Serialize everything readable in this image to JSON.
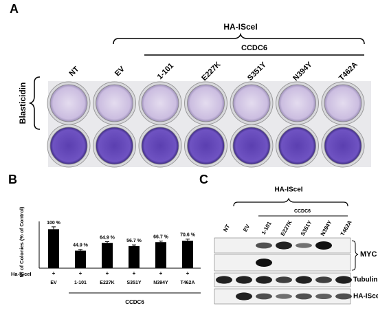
{
  "panel_a": {
    "label": "A",
    "bracket_title": "HA-ISceI",
    "sub_title": "CCDC6",
    "columns": [
      "NT",
      "EV",
      "1-101",
      "E227K",
      "S351Y",
      "N394Y",
      "T462A"
    ],
    "row_label": "Blasticidin"
  },
  "chart_data": {
    "type": "bar",
    "label": "B",
    "ylabel": "N° of Colonies (% of Control)",
    "categories": [
      "EV",
      "1-101",
      "E227K",
      "S351Y",
      "N394Y",
      "T462A"
    ],
    "values": [
      100,
      44.9,
      64.9,
      56.7,
      66.7,
      70.6
    ],
    "value_labels": [
      "100 %",
      "44.9 %",
      "64.9 %",
      "56.7 %",
      "66.7 %",
      "70.6 %"
    ],
    "errors": [
      6,
      3,
      3,
      3,
      3,
      4
    ],
    "color": "#000000",
    "ylim": [
      0,
      120
    ],
    "treatment_label": "Ha-ISceI",
    "treatment_marks": [
      "+",
      "+",
      "+",
      "+",
      "+",
      "+"
    ],
    "group_label": "CCDC6"
  },
  "panel_c": {
    "label": "C",
    "bracket_title": "HA-ISceI",
    "sub_title": "CCDC6",
    "lanes": [
      "NT",
      "EV",
      "1-101",
      "E227K",
      "S351Y",
      "N394Y",
      "T462A"
    ],
    "rows": [
      "MYC",
      "Tubulin",
      "HA-ISceI"
    ]
  }
}
